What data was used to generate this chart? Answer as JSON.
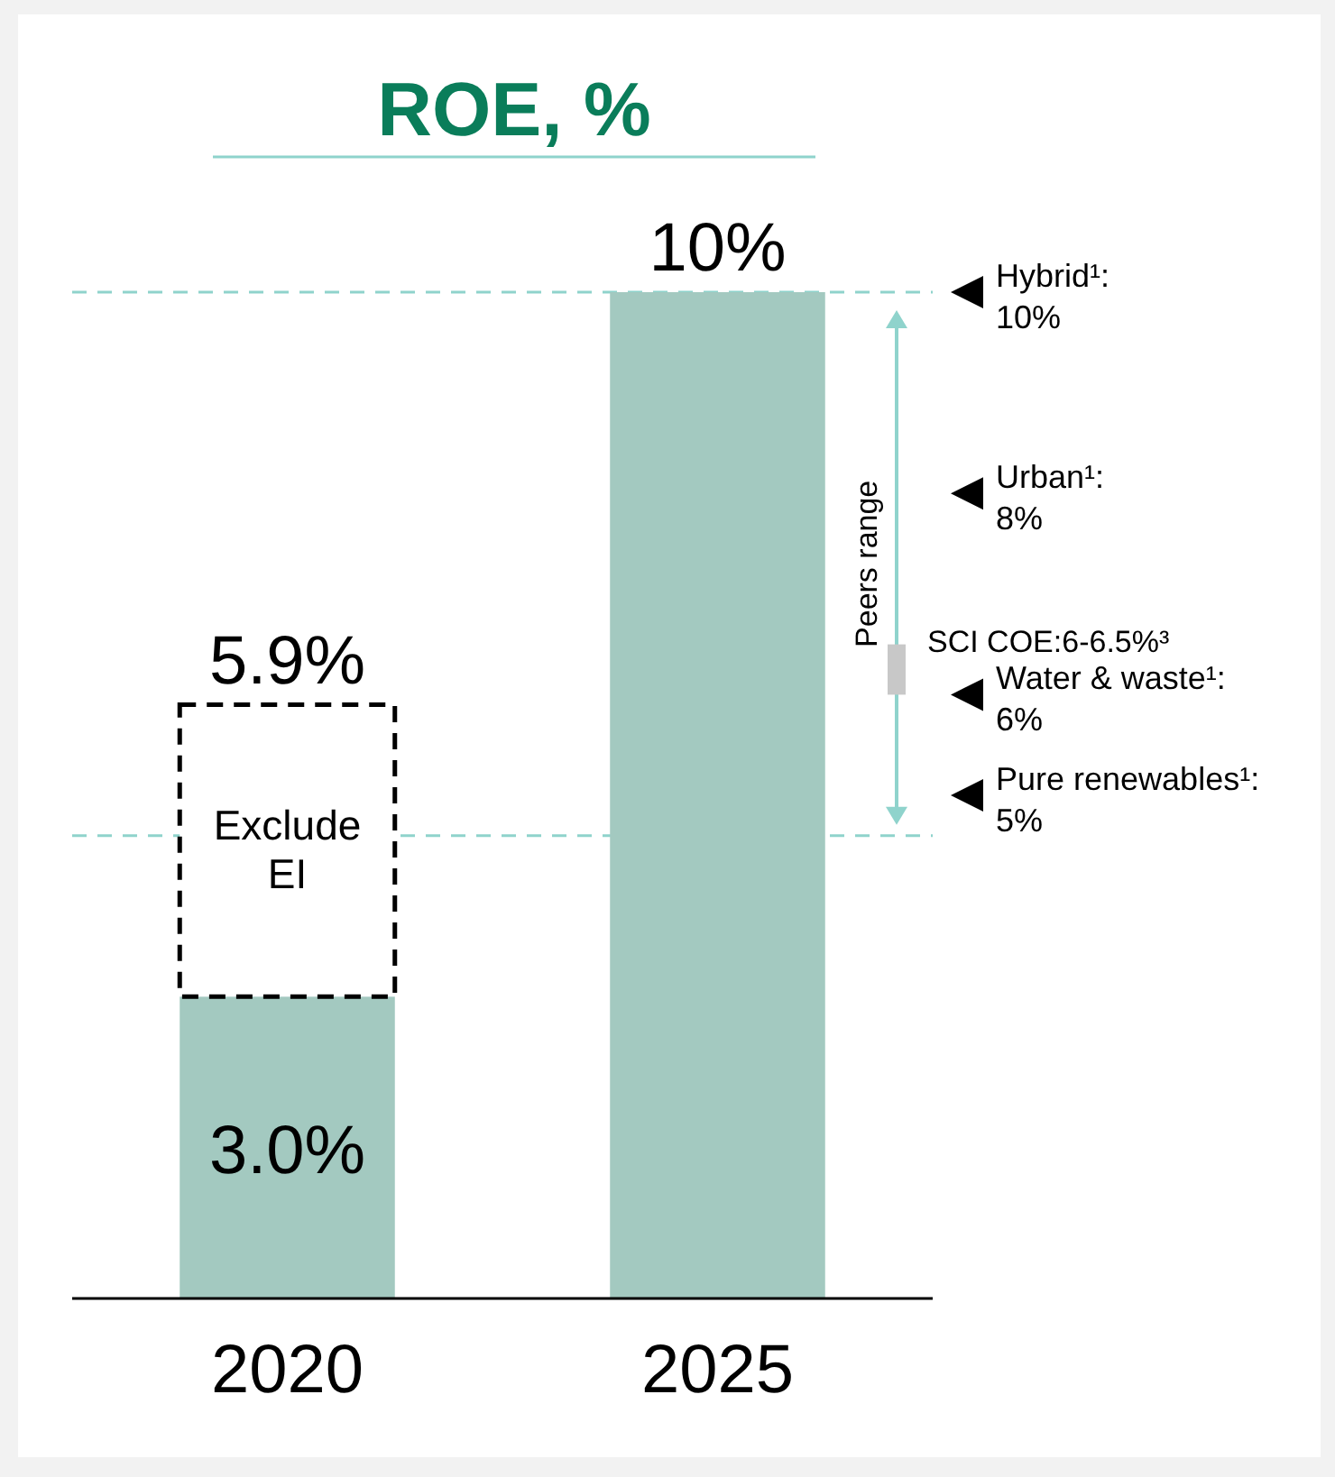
{
  "chart_data": {
    "type": "bar",
    "title": "ROE, %",
    "categories": [
      "2020",
      "2025"
    ],
    "stacked": true,
    "series": [
      {
        "color": "#a3c9c0",
        "values": [
          3.0,
          10
        ],
        "value_labels": [
          "3.0%",
          "10%"
        ]
      },
      {
        "name": "Exclude EI",
        "color": "#ffffff",
        "line_style": "dashed",
        "values": [
          2.9,
          null
        ]
      }
    ],
    "ylim": [
      0,
      10
    ],
    "tick_labels": "x",
    "ref_lines": [
      {
        "axis": "y",
        "value": 10,
        "color": "#8fd3cc",
        "line_style": "dashed"
      },
      {
        "axis": "y",
        "value": 4.6,
        "color": "#8fd3cc",
        "line_style": "dashed"
      }
    ],
    "annotations": [
      {
        "text": "Peers range"
      },
      "SCI COE:6-6.5%³",
      {
        "text": "5.9%",
        "x": "2020",
        "y": 5.9
      },
      "Hybrid¹: 10%",
      "Urban¹: 8%",
      "Water & waste¹: 6%",
      "Pure renewables¹: 5%"
    ]
  }
}
